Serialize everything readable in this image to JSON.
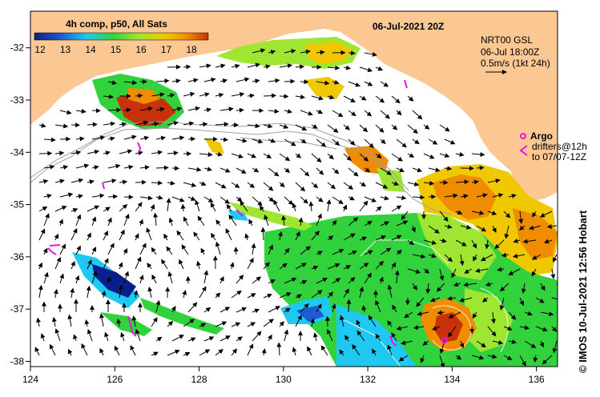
{
  "title": "06-Jul-2021 20Z",
  "colorbar": {
    "title": "4h comp, p50, All Sats",
    "ticks": [
      "12",
      "13",
      "14",
      "15",
      "16",
      "17",
      "18"
    ],
    "colors": [
      "#0a1e8c",
      "#1e5ad2",
      "#1ec8f0",
      "#32d23c",
      "#9ee632",
      "#f0c800",
      "#f08c00",
      "#c8320a"
    ]
  },
  "current_info": {
    "line1": "NRT00 GSL",
    "line2": "06-Jul 18:00Z",
    "line3": "0.5m/s (1kt 24h)"
  },
  "legend": {
    "argo_label": "Argo",
    "drifters_line1": "drifters@12h",
    "drifters_line2": "to 07/07-12Z",
    "argo_color": "#e614e6"
  },
  "credit": "© IMOS 10-Jul-2021 12:56 Hobart",
  "axes": {
    "x_ticks": [
      "124",
      "126",
      "128",
      "130",
      "132",
      "134",
      "136"
    ],
    "y_ticks": [
      "-32",
      "-33",
      "-34",
      "-35",
      "-36",
      "-37",
      "-38"
    ]
  },
  "colors": {
    "land": "#fbc894",
    "ocean": "#ffffff",
    "arrow": "#000000"
  }
}
